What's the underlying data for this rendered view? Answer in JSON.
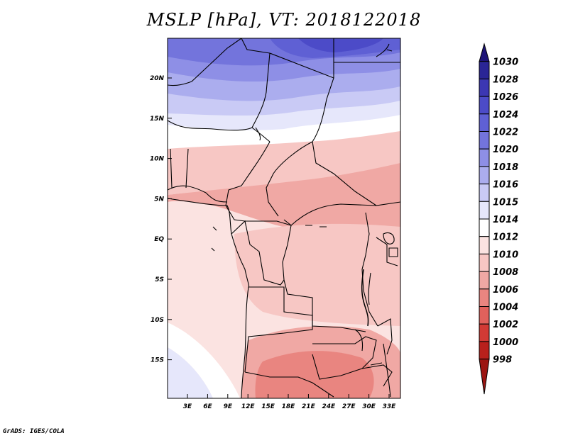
{
  "header": {
    "title": "MSLP [hPa], VT: 2018122018"
  },
  "map": {
    "lat_labels": [
      "20N",
      "15N",
      "10N",
      "5N",
      "EQ",
      "5S",
      "10S",
      "15S"
    ],
    "lon_labels": [
      "3E",
      "6E",
      "9E",
      "12E",
      "15E",
      "18E",
      "21E",
      "24E",
      "27E",
      "30E",
      "33E"
    ]
  },
  "colorbar": {
    "labels": [
      "1030",
      "1028",
      "1026",
      "1024",
      "1022",
      "1020",
      "1018",
      "1016",
      "1015",
      "1014",
      "1012",
      "1010",
      "1008",
      "1006",
      "1004",
      "1002",
      "1000",
      "998"
    ],
    "colors": [
      "#1e1478",
      "#2a2596",
      "#3c37b3",
      "#4c4bc8",
      "#5f60d4",
      "#7374dc",
      "#8e8fe6",
      "#abadee",
      "#c9caf5",
      "#e6e7fb",
      "#ffffff",
      "#fbe3e1",
      "#f7c7c4",
      "#f0a8a4",
      "#e98580",
      "#e0615c",
      "#d13a35",
      "#b8201c",
      "#9c1512"
    ]
  },
  "footer": {
    "credit": "GrADS: IGES/COLA"
  }
}
